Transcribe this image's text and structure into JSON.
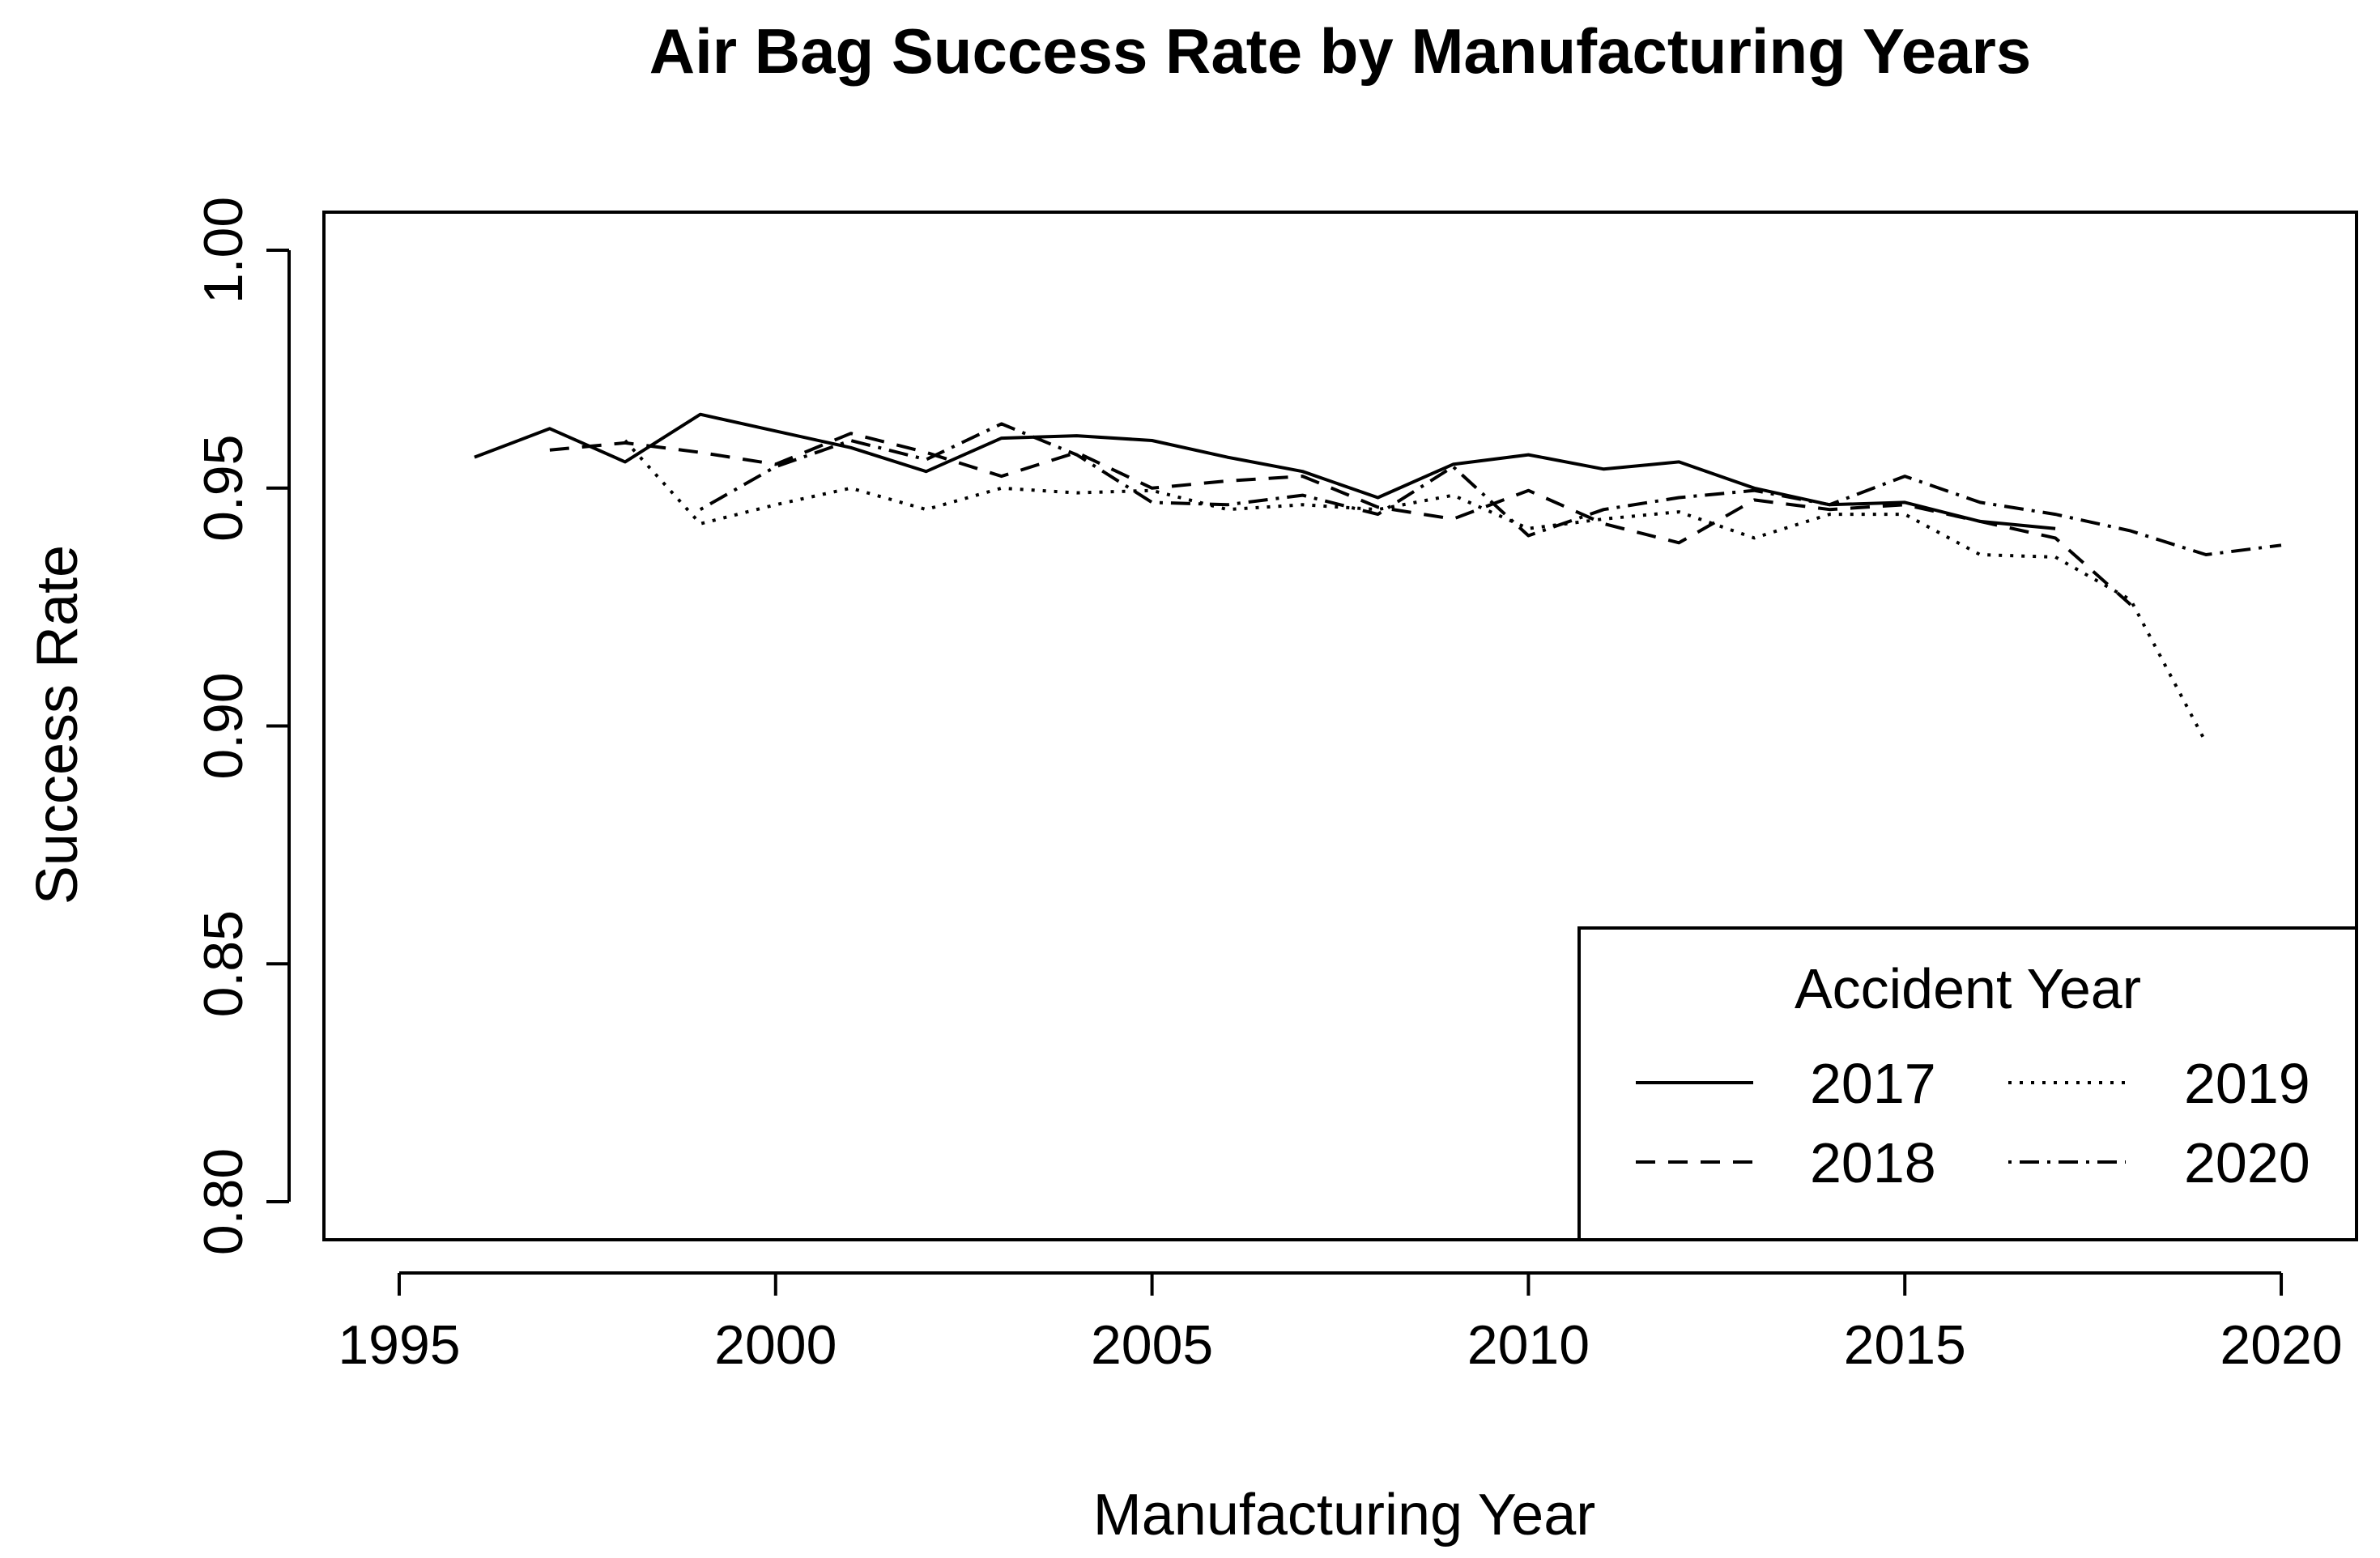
{
  "chart_data": {
    "type": "line",
    "title": "Air Bag Success Rate by Manufacturing Years",
    "xlabel": "Manufacturing Year",
    "ylabel": "Success Rate",
    "xlim": [
      1994,
      2021
    ],
    "ylim": [
      0.792,
      1.008
    ],
    "x_ticks": [
      1995,
      2000,
      2005,
      2010,
      2015,
      2020
    ],
    "x_tick_labels": [
      "1995",
      "2000",
      "2005",
      "2010",
      "2015",
      "2020"
    ],
    "y_ticks": [
      0.8,
      0.85,
      0.9,
      0.95,
      1.0
    ],
    "y_tick_labels": [
      "0.80",
      "0.85",
      "0.90",
      "0.95",
      "1.00"
    ],
    "grid": false,
    "legend": {
      "title": "Accident Year",
      "position": "bottom-right",
      "entries": [
        "2017",
        "2018",
        "2019",
        "2020"
      ]
    },
    "series": [
      {
        "name": "2017",
        "dash": "solid",
        "x": [
          1996,
          1997,
          1998,
          1999,
          2000,
          2001,
          2002,
          2003,
          2004,
          2005,
          2006,
          2007,
          2008,
          2009,
          2010,
          2011,
          2012,
          2013,
          2014,
          2015,
          2016,
          2017
        ],
        "values": [
          0.9565,
          0.9625,
          0.9555,
          0.9655,
          0.962,
          0.9585,
          0.9535,
          0.9605,
          0.961,
          0.96,
          0.9565,
          0.9535,
          0.948,
          0.955,
          0.957,
          0.954,
          0.9555,
          0.95,
          0.9465,
          0.947,
          0.943,
          0.9415
        ]
      },
      {
        "name": "2018",
        "dash": "dashed",
        "x": [
          1997,
          1998,
          1999,
          2000,
          2001,
          2002,
          2003,
          2004,
          2005,
          2006,
          2007,
          2008,
          2009,
          2010,
          2011,
          2012,
          2013,
          2014,
          2015,
          2016,
          2017,
          2018
        ],
        "values": [
          0.958,
          0.9595,
          0.9575,
          0.955,
          0.9615,
          0.9575,
          0.9525,
          0.9575,
          0.95,
          0.9515,
          0.9525,
          0.946,
          0.9435,
          0.9495,
          0.9425,
          0.9385,
          0.9475,
          0.9455,
          0.9465,
          0.943,
          0.9395,
          0.9255
        ]
      },
      {
        "name": "2019",
        "dash": "dotted",
        "x": [
          1998,
          1999,
          2000,
          2001,
          2002,
          2003,
          2004,
          2005,
          2006,
          2007,
          2008,
          2009,
          2010,
          2011,
          2012,
          2013,
          2014,
          2015,
          2016,
          2017,
          2018,
          2019
        ],
        "values": [
          0.96,
          0.9425,
          0.9465,
          0.95,
          0.9455,
          0.95,
          0.949,
          0.9495,
          0.9455,
          0.9465,
          0.9455,
          0.9485,
          0.9415,
          0.9435,
          0.945,
          0.9395,
          0.9445,
          0.9445,
          0.936,
          0.9355,
          0.9265,
          0.8965
        ]
      },
      {
        "name": "2020",
        "dash": "dotdash",
        "x": [
          1999,
          2000,
          2001,
          2002,
          2003,
          2004,
          2005,
          2006,
          2007,
          2008,
          2009,
          2010,
          2011,
          2012,
          2013,
          2014,
          2015,
          2016,
          2017,
          2018,
          2019,
          2020
        ],
        "values": [
          0.9455,
          0.9545,
          0.96,
          0.956,
          0.9635,
          0.957,
          0.947,
          0.9465,
          0.9485,
          0.9445,
          0.9545,
          0.94,
          0.9455,
          0.948,
          0.9495,
          0.9465,
          0.9525,
          0.947,
          0.9445,
          0.941,
          0.936,
          0.938
        ]
      }
    ]
  }
}
